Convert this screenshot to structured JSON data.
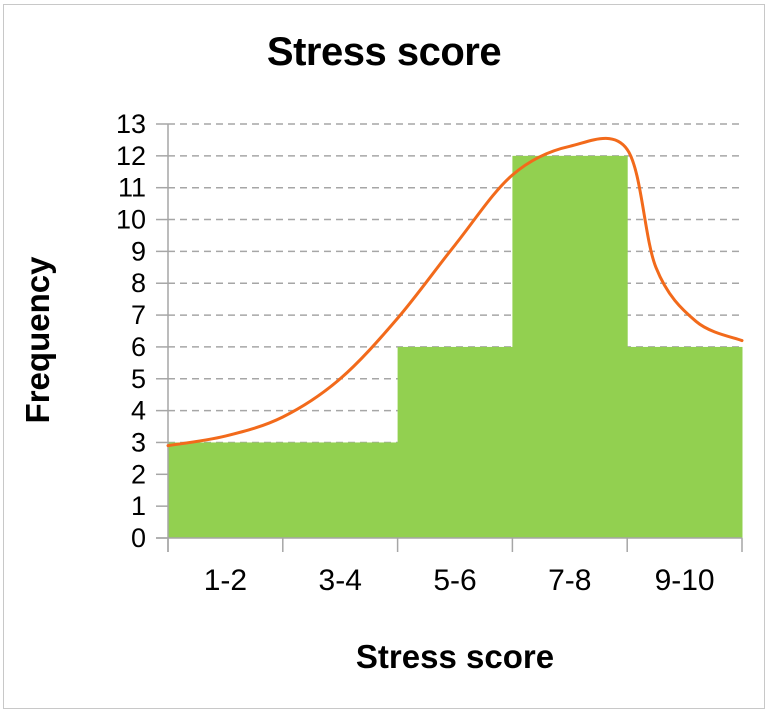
{
  "chart": {
    "title": "Stress score",
    "xlabel": "Stress score",
    "ylabel": "Frequency"
  },
  "colors": {
    "bar_fill": "#92d050",
    "curve": "#f26a1b",
    "gridline": "#a6a6a6",
    "axis": "#a6a6a6"
  },
  "chart_data": {
    "type": "bar",
    "title": "Stress score",
    "xlabel": "Stress score",
    "ylabel": "Frequency",
    "categories": [
      "1-2",
      "3-4",
      "5-6",
      "7-8",
      "9-10"
    ],
    "values": [
      3,
      3,
      6,
      12,
      6
    ],
    "ylim": [
      0,
      13
    ],
    "yticks": [
      0,
      1,
      2,
      3,
      4,
      5,
      6,
      7,
      8,
      9,
      10,
      11,
      12,
      13
    ],
    "grid": "horizontal dashed",
    "legend": "none",
    "overlay": {
      "type": "line",
      "description": "hand-drawn smooth distribution curve",
      "approx_points": [
        {
          "x": 0.0,
          "y": 2.9
        },
        {
          "x": 0.5,
          "y": 3.2
        },
        {
          "x": 1.0,
          "y": 3.8
        },
        {
          "x": 1.5,
          "y": 5.0
        },
        {
          "x": 2.0,
          "y": 6.9
        },
        {
          "x": 2.5,
          "y": 9.2
        },
        {
          "x": 3.0,
          "y": 11.4
        },
        {
          "x": 3.5,
          "y": 12.3
        },
        {
          "x": 4.0,
          "y": 12.2
        },
        {
          "x": 4.25,
          "y": 8.5
        },
        {
          "x": 4.6,
          "y": 6.8
        },
        {
          "x": 5.0,
          "y": 6.2
        }
      ]
    }
  }
}
